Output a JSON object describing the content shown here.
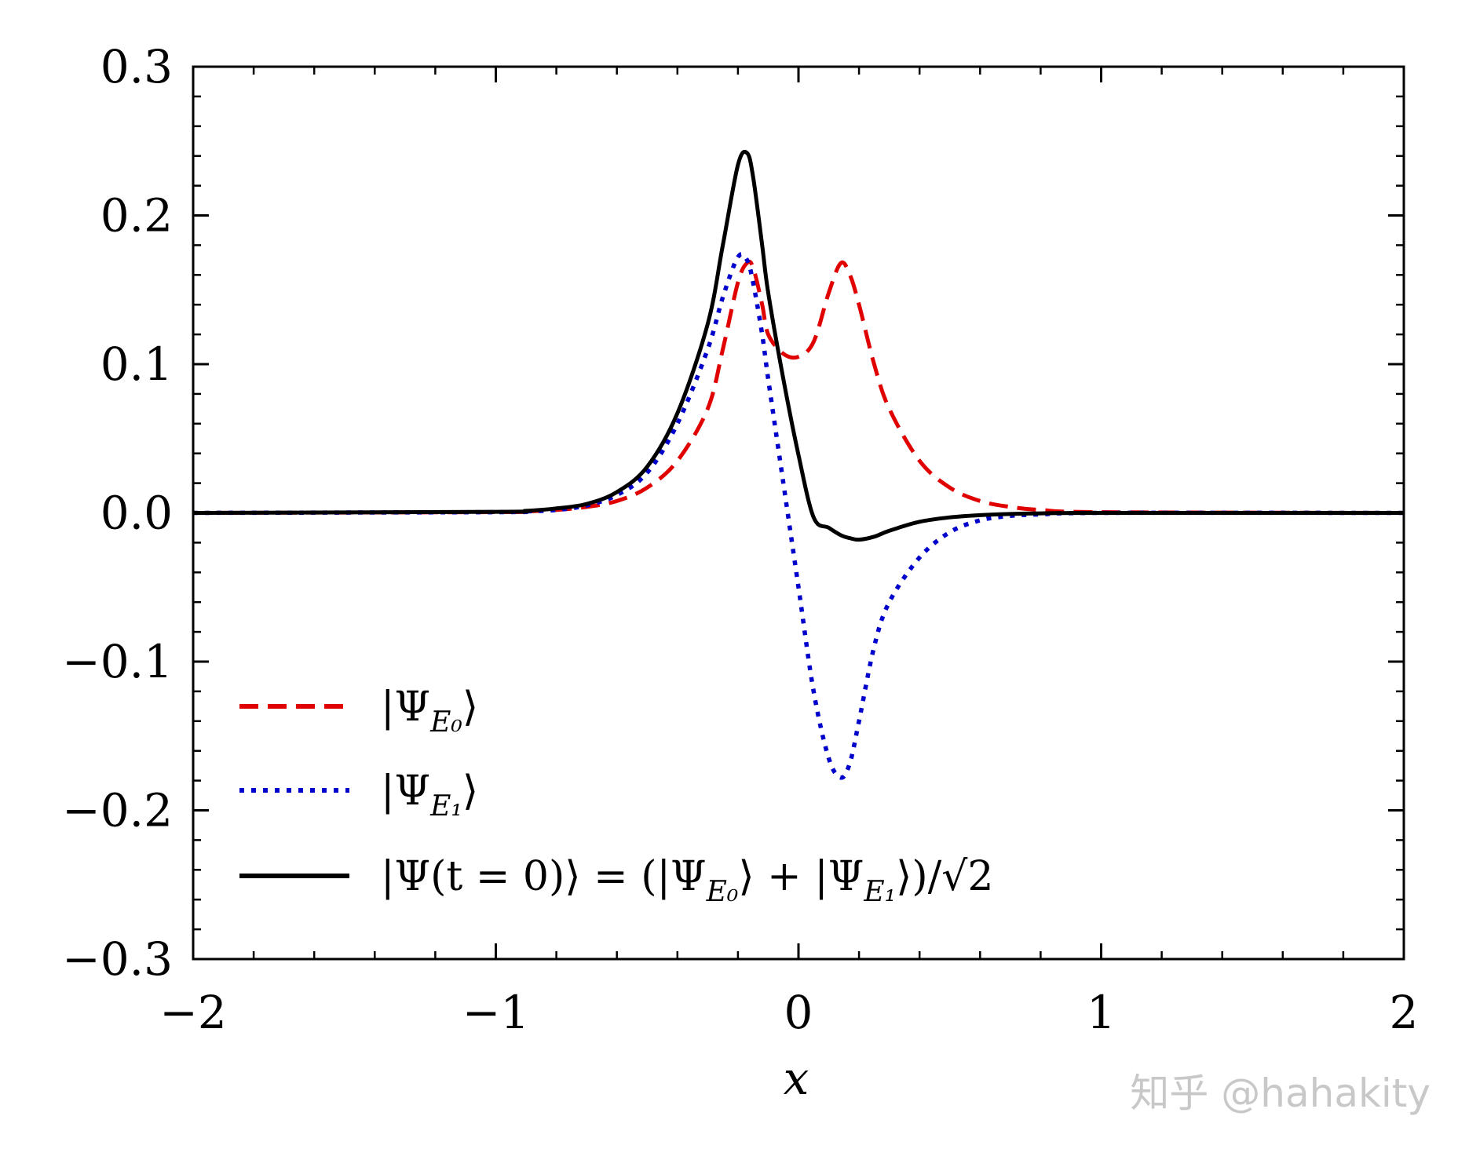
{
  "chart_data": {
    "type": "line",
    "title": "",
    "xlabel": "x",
    "ylabel": "",
    "xlim": [
      -2,
      2
    ],
    "ylim": [
      -0.3,
      0.3
    ],
    "x_ticks": [
      -2,
      -1,
      0,
      1,
      2
    ],
    "x_tick_labels": [
      "−2",
      "−1",
      "0",
      "1",
      "2"
    ],
    "y_ticks": [
      -0.3,
      -0.2,
      -0.1,
      0.0,
      0.1,
      0.2,
      0.3
    ],
    "y_tick_labels": [
      "−0.3",
      "−0.2",
      "−0.1",
      "0.0",
      "0.1",
      "0.2",
      "0.3"
    ],
    "grid": false,
    "legend_position": "lower-left",
    "x": [
      -2.0,
      -1.0,
      -0.9,
      -0.8,
      -0.7,
      -0.6,
      -0.5,
      -0.4,
      -0.3,
      -0.25,
      -0.2,
      -0.17,
      -0.15,
      -0.12,
      -0.1,
      -0.05,
      0.0,
      0.05,
      0.1,
      0.14,
      0.17,
      0.2,
      0.25,
      0.3,
      0.4,
      0.5,
      0.6,
      0.7,
      0.8,
      1.0,
      2.0
    ],
    "series": [
      {
        "name": "|ΨE0⟩",
        "style": "dashed",
        "color": "#e00000",
        "values": [
          0.0,
          0.0005,
          0.001,
          0.002,
          0.004,
          0.008,
          0.017,
          0.035,
          0.07,
          0.11,
          0.155,
          0.168,
          0.165,
          0.14,
          0.12,
          0.107,
          0.105,
          0.115,
          0.148,
          0.168,
          0.16,
          0.14,
          0.1,
          0.07,
          0.035,
          0.017,
          0.008,
          0.004,
          0.002,
          0.0005,
          0.0
        ]
      },
      {
        "name": "|ΨE1⟩",
        "style": "dotted",
        "color": "#0000cc",
        "values": [
          0.0,
          0.0005,
          0.001,
          0.002,
          0.005,
          0.012,
          0.027,
          0.06,
          0.11,
          0.145,
          0.172,
          0.17,
          0.155,
          0.12,
          0.09,
          0.02,
          -0.05,
          -0.12,
          -0.165,
          -0.178,
          -0.168,
          -0.14,
          -0.09,
          -0.06,
          -0.03,
          -0.013,
          -0.005,
          -0.002,
          -0.001,
          0.0,
          0.0
        ]
      },
      {
        "name": "|Ψ(t = 0)⟩ = (|ΨE0⟩ + |ΨE1⟩)/√2",
        "style": "solid",
        "color": "#000000",
        "values": [
          0.0,
          0.0007,
          0.0014,
          0.003,
          0.006,
          0.014,
          0.031,
          0.067,
          0.127,
          0.18,
          0.234,
          0.242,
          0.226,
          0.18,
          0.148,
          0.09,
          0.039,
          -0.003,
          -0.01,
          -0.015,
          -0.017,
          -0.018,
          -0.016,
          -0.012,
          -0.006,
          -0.003,
          -0.0015,
          -0.0007,
          -0.0003,
          0.0,
          0.0
        ]
      }
    ]
  },
  "legend": {
    "entries": [
      {
        "prefix": "|Ψ",
        "sub": "E₀",
        "suffix": "⟩"
      },
      {
        "prefix": "|Ψ",
        "sub": "E₁",
        "suffix": "⟩"
      },
      {
        "prefix": "|Ψ(t = 0)⟩ = (|Ψ",
        "sub": "E₀",
        "mid": "⟩ + |Ψ",
        "sub2": "E₁",
        "suffix": "⟩)/√2"
      }
    ]
  },
  "watermark": "知乎 @hahakity"
}
